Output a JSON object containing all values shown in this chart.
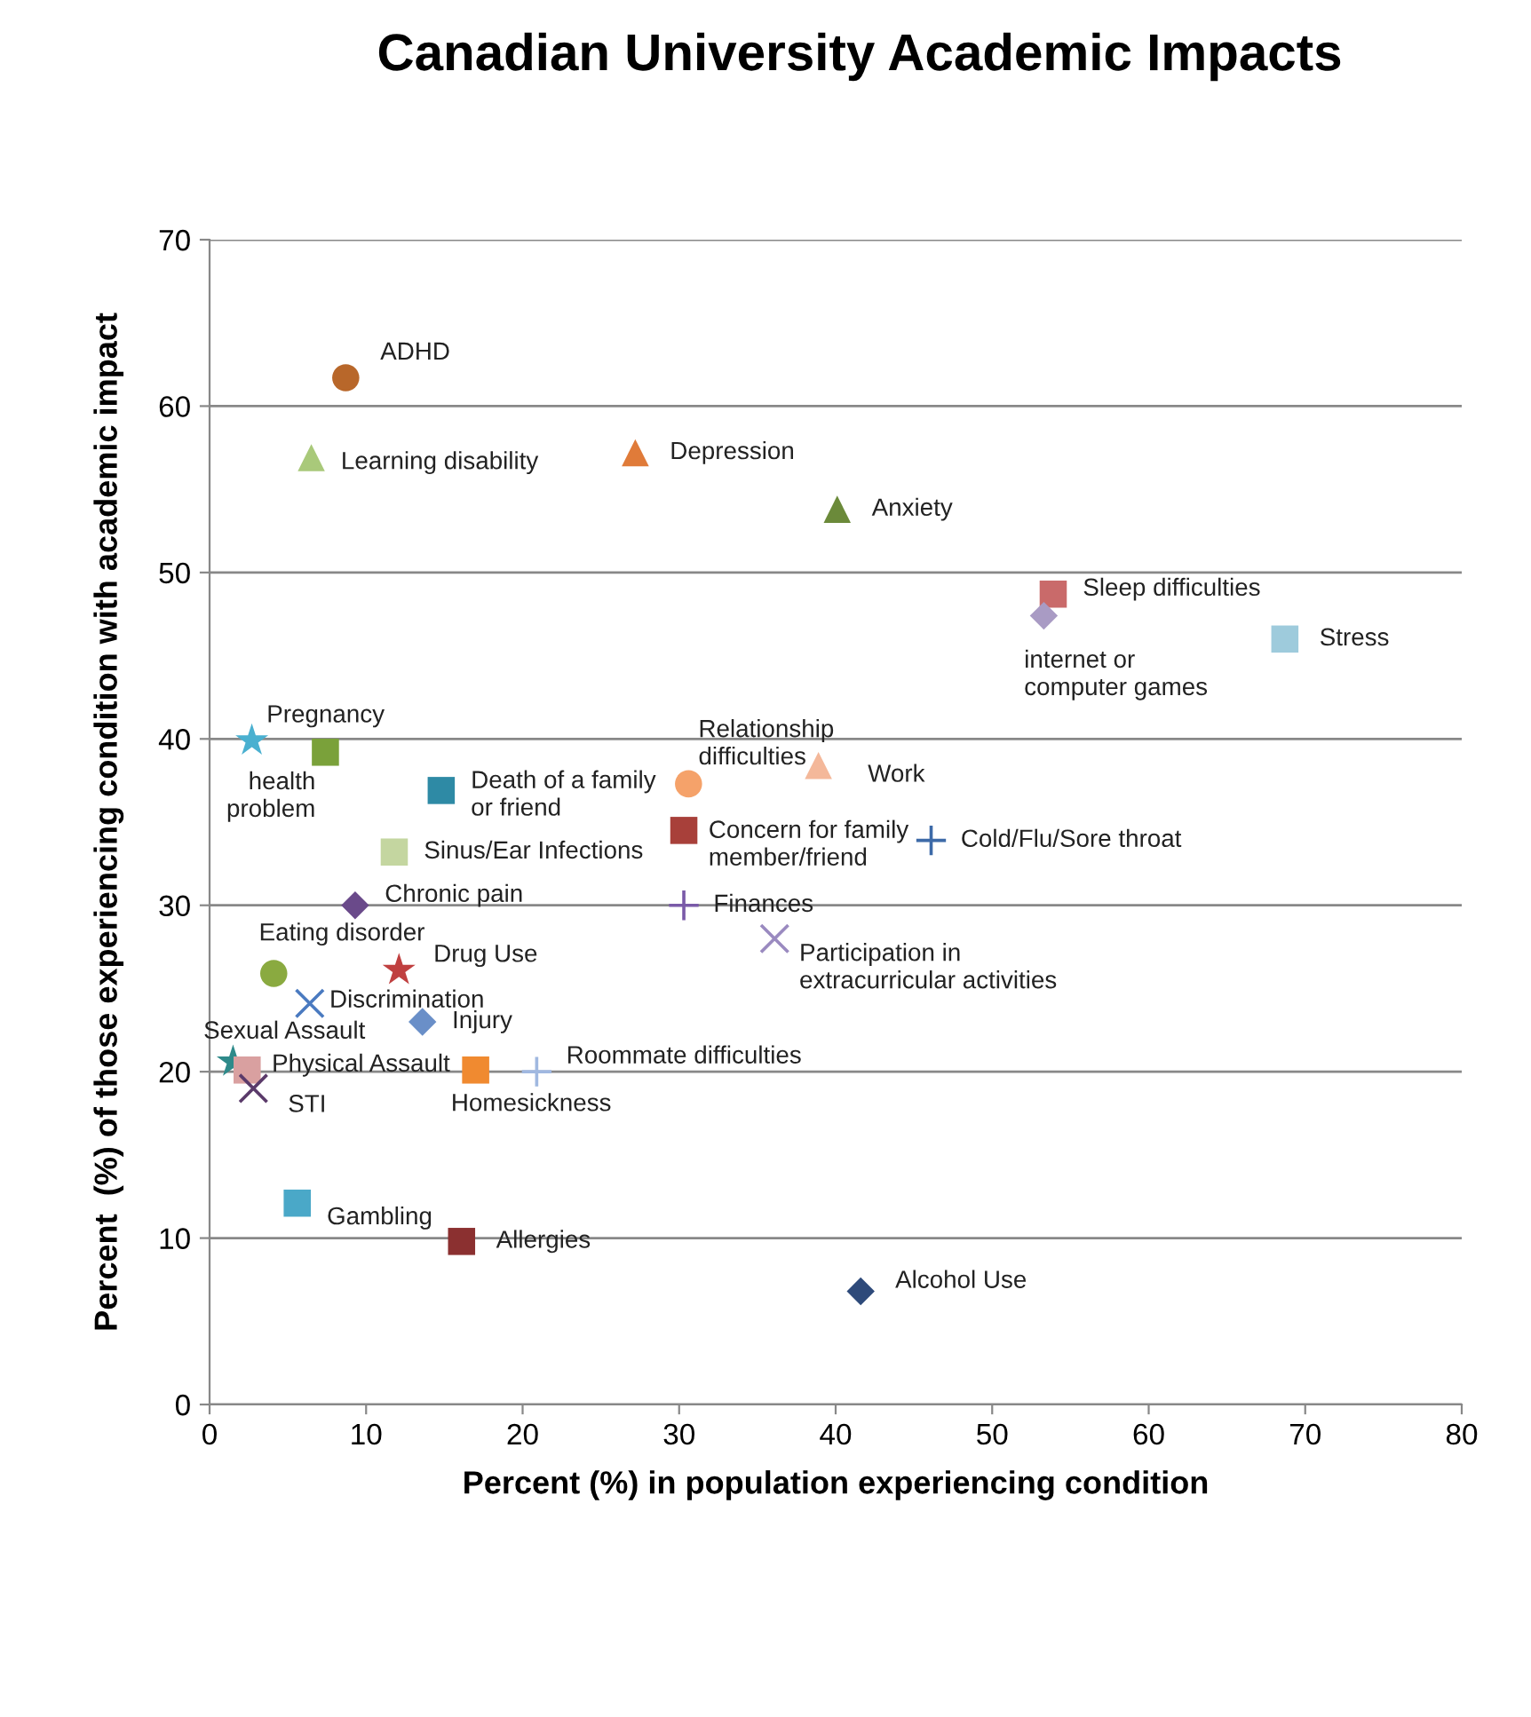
{
  "chart_data": {
    "type": "scatter",
    "title": "Canadian University Academic Impacts",
    "xlabel": "Percent (%) in population experiencing condition",
    "ylabel": "Percent  (%) of those experiencing condition with academic impact",
    "xlim": [
      0,
      80
    ],
    "ylim": [
      0,
      70
    ],
    "xticks": [
      0,
      10,
      20,
      30,
      40,
      50,
      60,
      70,
      80
    ],
    "yticks": [
      0,
      10,
      20,
      30,
      40,
      50,
      60,
      70
    ],
    "grid": "y",
    "legend": false,
    "series": [
      {
        "name": "ADHD",
        "color": "#b8672a",
        "marker": "circle",
        "x": [
          8.7
        ],
        "values": [
          61.7
        ]
      },
      {
        "name": "Learning disability",
        "color": "#a9c97a",
        "marker": "triangle",
        "x": [
          6.5
        ],
        "values": [
          56.9
        ]
      },
      {
        "name": "Depression",
        "color": "#e07b39",
        "marker": "triangle",
        "x": [
          27.2
        ],
        "values": [
          57.2
        ]
      },
      {
        "name": "Anxiety",
        "color": "#6b8a3a",
        "marker": "triangle",
        "x": [
          40.1
        ],
        "values": [
          53.8
        ]
      },
      {
        "name": "Sleep difficulties",
        "color": "#c96a6a",
        "marker": "square",
        "x": [
          53.9
        ],
        "values": [
          48.7
        ]
      },
      {
        "name": "internet or\ncomputer games",
        "color": "#a99bc4",
        "marker": "diamond",
        "x": [
          53.3
        ],
        "values": [
          47.4
        ]
      },
      {
        "name": "Stress",
        "color": "#9ecbdc",
        "marker": "square",
        "x": [
          68.7
        ],
        "values": [
          46.0
        ]
      },
      {
        "name": "Relationship\ndifficulties",
        "color": "#f5a26a",
        "marker": "circle",
        "x": [
          30.6
        ],
        "values": [
          37.3
        ]
      },
      {
        "name": "Work",
        "color": "#f4b89a",
        "marker": "triangle",
        "x": [
          38.9
        ],
        "values": [
          38.4
        ]
      },
      {
        "name": "Concern for family\nmember/friend",
        "color": "#a8403a",
        "marker": "square",
        "x": [
          30.3
        ],
        "values": [
          34.5
        ]
      },
      {
        "name": "Cold/Flu/Sore throat",
        "color": "#3d6aa8",
        "marker": "plus",
        "x": [
          46.1
        ],
        "values": [
          33.9
        ]
      },
      {
        "name": "Pregnancy",
        "color": "#4ab0d0",
        "marker": "star",
        "x": [
          2.7
        ],
        "values": [
          39.9
        ]
      },
      {
        "name": "health\nproblem",
        "color": "#7aa13a",
        "marker": "square",
        "x": [
          7.4
        ],
        "values": [
          39.2
        ]
      },
      {
        "name": "Death of a family\nor friend",
        "color": "#2e8aa5",
        "marker": "square",
        "x": [
          14.8
        ],
        "values": [
          36.9
        ]
      },
      {
        "name": "Sinus/Ear Infections",
        "color": "#c4d6a0",
        "marker": "square",
        "x": [
          11.8
        ],
        "values": [
          33.2
        ]
      },
      {
        "name": "Chronic pain",
        "color": "#6a4a8a",
        "marker": "diamond",
        "x": [
          9.3
        ],
        "values": [
          30.0
        ]
      },
      {
        "name": "Finances",
        "color": "#7a5aa8",
        "marker": "plus",
        "x": [
          30.3
        ],
        "values": [
          30.0
        ]
      },
      {
        "name": "Participation in\nextracurricular activities",
        "color": "#9a8ac0",
        "marker": "cross",
        "x": [
          36.1
        ],
        "values": [
          28.0
        ]
      },
      {
        "name": "Eating disorder",
        "color": "#8aaa40",
        "marker": "circle",
        "x": [
          4.1
        ],
        "values": [
          25.9
        ]
      },
      {
        "name": "Drug Use",
        "color": "#c04040",
        "marker": "star",
        "x": [
          12.1
        ],
        "values": [
          26.1
        ]
      },
      {
        "name": "Discrimination",
        "color": "#4a7ac0",
        "marker": "cross",
        "x": [
          6.4
        ],
        "values": [
          24.1
        ]
      },
      {
        "name": "Injury",
        "color": "#6a8fc8",
        "marker": "diamond",
        "x": [
          13.6
        ],
        "values": [
          23.0
        ]
      },
      {
        "name": "Sexual Assault",
        "color": "#2e8a8a",
        "marker": "star",
        "x": [
          1.5
        ],
        "values": [
          20.6
        ]
      },
      {
        "name": "Physical Assault",
        "color": "#d9a0a0",
        "marker": "square",
        "x": [
          2.4
        ],
        "values": [
          20.1
        ]
      },
      {
        "name": "STI",
        "color": "#5a3a6a",
        "marker": "cross",
        "x": [
          2.8
        ],
        "values": [
          19.0
        ]
      },
      {
        "name": "Homesickness",
        "color": "#f08a30",
        "marker": "square",
        "x": [
          17.0
        ],
        "values": [
          20.1
        ]
      },
      {
        "name": "Roommate difficulties",
        "color": "#a0b8e0",
        "marker": "plus",
        "x": [
          20.9
        ],
        "values": [
          20.0
        ]
      },
      {
        "name": "Gambling",
        "color": "#4aa8c8",
        "marker": "square",
        "x": [
          5.6
        ],
        "values": [
          12.1
        ]
      },
      {
        "name": "Allergies",
        "color": "#8b3030",
        "marker": "square",
        "x": [
          16.1
        ],
        "values": [
          9.8
        ]
      },
      {
        "name": "Alcohol Use",
        "color": "#2e4a7a",
        "marker": "diamond",
        "x": [
          41.6
        ],
        "values": [
          6.8
        ]
      }
    ]
  }
}
